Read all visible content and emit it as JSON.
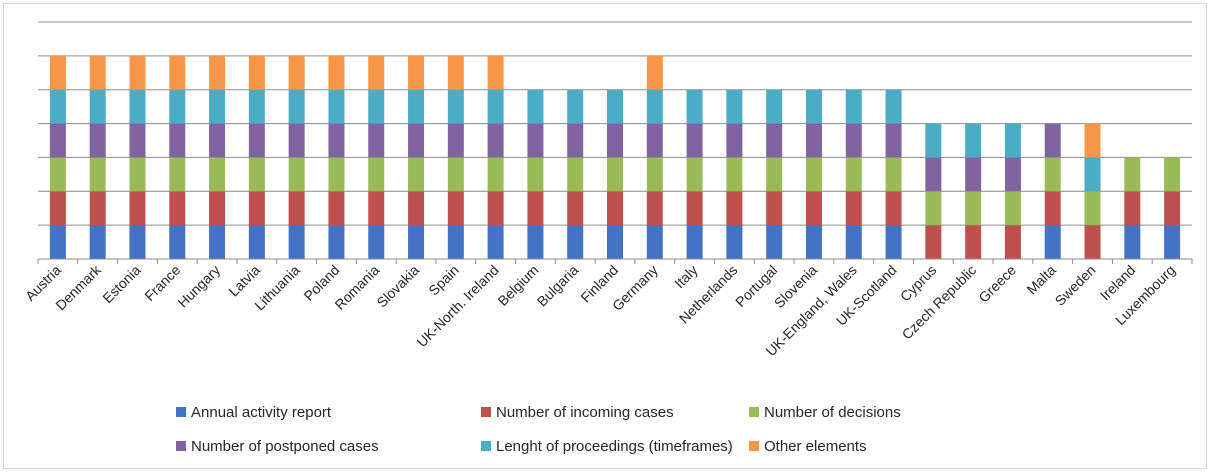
{
  "chart_data": {
    "type": "bar",
    "stacked": true,
    "categories": [
      "Austria",
      "Denmark",
      "Estonia",
      "France",
      "Hungary",
      "Latvia",
      "Lithuania",
      "Poland",
      "Romania",
      "Slovakia",
      "Spain",
      "UK-North. Ireland",
      "Belgium",
      "Bulgaria",
      "Finland",
      "Germany",
      "Italy",
      "Netherlands",
      "Portugal",
      "Slovenia",
      "UK-England, Wales",
      "UK-Scotland",
      "Cyprus",
      "Czech Republic",
      "Greece",
      "Malta",
      "Sweden",
      "Ireland",
      "Luxembourg"
    ],
    "series": [
      {
        "name": "Annual activity report",
        "color": "#4472C4",
        "values": [
          1,
          1,
          1,
          1,
          1,
          1,
          1,
          1,
          1,
          1,
          1,
          1,
          1,
          1,
          1,
          1,
          1,
          1,
          1,
          1,
          1,
          1,
          0,
          0,
          0,
          1,
          0,
          1,
          1
        ]
      },
      {
        "name": "Number of incoming cases",
        "color": "#C0504D",
        "values": [
          1,
          1,
          1,
          1,
          1,
          1,
          1,
          1,
          1,
          1,
          1,
          1,
          1,
          1,
          1,
          1,
          1,
          1,
          1,
          1,
          1,
          1,
          1,
          1,
          1,
          1,
          1,
          1,
          1
        ]
      },
      {
        "name": "Number of decisions",
        "color": "#9BBB59",
        "values": [
          1,
          1,
          1,
          1,
          1,
          1,
          1,
          1,
          1,
          1,
          1,
          1,
          1,
          1,
          1,
          1,
          1,
          1,
          1,
          1,
          1,
          1,
          1,
          1,
          1,
          1,
          1,
          1,
          1
        ]
      },
      {
        "name": "Number of postponed cases",
        "color": "#8064A2",
        "values": [
          1,
          1,
          1,
          1,
          1,
          1,
          1,
          1,
          1,
          1,
          1,
          1,
          1,
          1,
          1,
          1,
          1,
          1,
          1,
          1,
          1,
          1,
          1,
          1,
          1,
          1,
          0,
          0,
          0
        ]
      },
      {
        "name": "Lenght of proceedings (timeframes)",
        "color": "#4BACC6",
        "values": [
          1,
          1,
          1,
          1,
          1,
          1,
          1,
          1,
          1,
          1,
          1,
          1,
          1,
          1,
          1,
          1,
          1,
          1,
          1,
          1,
          1,
          1,
          1,
          1,
          1,
          0,
          1,
          0,
          0
        ]
      },
      {
        "name": "Other elements",
        "color": "#F79646",
        "values": [
          1,
          1,
          1,
          1,
          1,
          1,
          1,
          1,
          1,
          1,
          1,
          1,
          0,
          0,
          0,
          1,
          0,
          0,
          0,
          0,
          0,
          0,
          0,
          0,
          0,
          0,
          1,
          0,
          0
        ]
      }
    ],
    "ylim": [
      0,
      7
    ],
    "grid": true,
    "legend_position": "bottom"
  }
}
